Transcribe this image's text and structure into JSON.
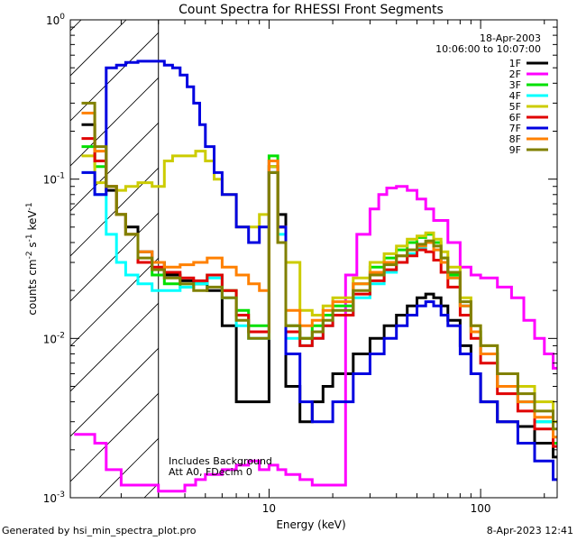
{
  "footer": {
    "generated_by": "Generated by hsi_min_spectra_plot.pro",
    "timestamp": "8-Apr-2023 12:41"
  },
  "colors": {
    "1F": "#000000",
    "2F": "#ff00ff",
    "3F": "#00e000",
    "4F": "#00ffff",
    "5F": "#cccc00",
    "6F": "#e00000",
    "7F": "#0000e0",
    "8F": "#ff8000",
    "9F": "#808000"
  },
  "chart_data": {
    "type": "line",
    "title": "Count Spectra for RHESSI Front Segments",
    "xlabel": "Energy (keV)",
    "ylabel_parts": [
      "counts cm",
      "-2",
      " s",
      "-1",
      " keV",
      "-1"
    ],
    "xscale": "log",
    "yscale": "log",
    "xlim": [
      1.15,
      230
    ],
    "ylim": [
      0.001,
      1
    ],
    "x_ticks": [
      10,
      100
    ],
    "x_tick_labels": [
      "10",
      "100"
    ],
    "y_ticks": [
      0.001,
      0.01,
      0.1,
      1
    ],
    "y_tick_labels_base": [
      "10",
      "10",
      "10",
      "10"
    ],
    "y_tick_labels_exp": [
      "-3",
      "-2",
      "-1",
      "0"
    ],
    "date": "18-Apr-2003",
    "time_range": "10:06:00 to 10:07:00",
    "annotations": [
      "Includes Background",
      "Att A0, FDecim 0"
    ],
    "hatched_region_xmax": 3.0,
    "legend_placement": "top-right",
    "series": [
      {
        "name": "1F",
        "x": [
          1.3,
          1.5,
          1.7,
          1.9,
          2.1,
          2.4,
          2.8,
          3.2,
          3.8,
          4.4,
          5.1,
          6,
          7,
          8,
          9,
          10,
          11,
          12,
          14,
          16,
          18,
          20,
          25,
          30,
          35,
          40,
          45,
          50,
          55,
          60,
          65,
          70,
          80,
          90,
          100,
          120,
          150,
          180,
          220
        ],
        "y": [
          0.22,
          0.13,
          0.085,
          0.06,
          0.05,
          0.035,
          0.03,
          0.025,
          0.023,
          0.022,
          0.02,
          0.012,
          0.004,
          0.004,
          0.004,
          0.12,
          0.06,
          0.005,
          0.003,
          0.004,
          0.005,
          0.006,
          0.008,
          0.01,
          0.012,
          0.014,
          0.016,
          0.018,
          0.019,
          0.018,
          0.016,
          0.013,
          0.009,
          0.006,
          0.004,
          0.003,
          0.0028,
          0.0022,
          0.0018
        ]
      },
      {
        "name": "2F",
        "x": [
          1.2,
          1.3,
          1.5,
          1.7,
          2.0,
          2.5,
          3.0,
          3.5,
          4.0,
          4.5,
          5.0,
          6.0,
          7.0,
          8.0,
          9.0,
          10,
          11,
          12,
          14,
          16,
          18,
          20,
          23,
          26,
          30,
          33,
          36,
          40,
          45,
          50,
          55,
          60,
          70,
          80,
          90,
          100,
          120,
          140,
          160,
          180,
          200,
          220
        ],
        "y": [
          0.0025,
          0.0025,
          0.0022,
          0.0015,
          0.0012,
          0.0012,
          0.0011,
          0.0011,
          0.0012,
          0.0013,
          0.0014,
          0.0015,
          0.0016,
          0.0017,
          0.0015,
          0.0016,
          0.0015,
          0.0014,
          0.0013,
          0.0012,
          0.0012,
          0.0012,
          0.025,
          0.045,
          0.065,
          0.08,
          0.088,
          0.09,
          0.085,
          0.075,
          0.065,
          0.055,
          0.04,
          0.028,
          0.025,
          0.024,
          0.021,
          0.018,
          0.013,
          0.01,
          0.008,
          0.0065
        ]
      },
      {
        "name": "3F",
        "x": [
          1.3,
          1.5,
          1.7,
          1.9,
          2.1,
          2.4,
          2.8,
          3.2,
          3.8,
          4.4,
          5.1,
          6,
          7,
          8,
          9,
          10,
          11,
          12,
          14,
          16,
          18,
          20,
          25,
          30,
          35,
          40,
          45,
          50,
          55,
          60,
          65,
          70,
          80,
          90,
          100,
          120,
          150,
          180,
          220
        ],
        "y": [
          0.16,
          0.12,
          0.09,
          0.06,
          0.045,
          0.03,
          0.025,
          0.022,
          0.021,
          0.022,
          0.025,
          0.02,
          0.015,
          0.012,
          0.012,
          0.14,
          0.05,
          0.012,
          0.01,
          0.012,
          0.014,
          0.016,
          0.022,
          0.028,
          0.032,
          0.036,
          0.04,
          0.043,
          0.045,
          0.04,
          0.032,
          0.025,
          0.016,
          0.011,
          0.008,
          0.005,
          0.004,
          0.003,
          0.0022
        ]
      },
      {
        "name": "4F",
        "x": [
          1.3,
          1.5,
          1.7,
          1.9,
          2.1,
          2.4,
          2.8,
          3.2,
          3.8,
          4.4,
          5.1,
          6,
          7,
          8,
          9,
          10,
          11,
          12,
          14,
          16,
          18,
          20,
          25,
          30,
          35,
          40,
          45,
          50,
          55,
          60,
          65,
          70,
          80,
          90,
          100,
          120,
          150,
          180,
          220
        ],
        "y": [
          0.11,
          0.08,
          0.045,
          0.03,
          0.025,
          0.022,
          0.02,
          0.02,
          0.021,
          0.022,
          0.024,
          0.018,
          0.012,
          0.01,
          0.01,
          0.11,
          0.045,
          0.01,
          0.009,
          0.01,
          0.012,
          0.014,
          0.018,
          0.022,
          0.026,
          0.03,
          0.034,
          0.037,
          0.04,
          0.036,
          0.03,
          0.024,
          0.016,
          0.011,
          0.008,
          0.005,
          0.004,
          0.003,
          0.0024
        ]
      },
      {
        "name": "5F",
        "x": [
          1.3,
          1.5,
          1.7,
          1.9,
          2.1,
          2.4,
          2.8,
          3.2,
          3.5,
          4.0,
          4.5,
          5.0,
          5.5,
          6,
          7,
          8,
          9,
          10,
          11,
          12,
          14,
          16,
          18,
          20,
          25,
          30,
          35,
          40,
          45,
          50,
          55,
          60,
          65,
          70,
          80,
          90,
          100,
          120,
          150,
          180,
          220
        ],
        "y": [
          0.14,
          0.095,
          0.09,
          0.085,
          0.09,
          0.095,
          0.09,
          0.13,
          0.14,
          0.14,
          0.15,
          0.13,
          0.1,
          0.08,
          0.05,
          0.05,
          0.06,
          0.12,
          0.05,
          0.03,
          0.015,
          0.014,
          0.016,
          0.018,
          0.024,
          0.03,
          0.034,
          0.038,
          0.042,
          0.044,
          0.046,
          0.042,
          0.035,
          0.028,
          0.018,
          0.012,
          0.009,
          0.006,
          0.005,
          0.004,
          0.003
        ]
      },
      {
        "name": "6F",
        "x": [
          1.3,
          1.5,
          1.7,
          1.9,
          2.1,
          2.4,
          2.8,
          3.2,
          3.8,
          4.4,
          5.1,
          6,
          7,
          8,
          9,
          10,
          11,
          12,
          14,
          16,
          18,
          20,
          25,
          30,
          35,
          40,
          45,
          50,
          55,
          60,
          65,
          70,
          80,
          90,
          100,
          120,
          150,
          180,
          220
        ],
        "y": [
          0.18,
          0.13,
          0.09,
          0.06,
          0.045,
          0.03,
          0.028,
          0.026,
          0.024,
          0.023,
          0.025,
          0.02,
          0.014,
          0.011,
          0.011,
          0.13,
          0.05,
          0.011,
          0.009,
          0.01,
          0.012,
          0.014,
          0.019,
          0.023,
          0.027,
          0.03,
          0.033,
          0.036,
          0.035,
          0.031,
          0.026,
          0.021,
          0.014,
          0.01,
          0.007,
          0.0045,
          0.0035,
          0.0027,
          0.0021
        ]
      },
      {
        "name": "7F",
        "x": [
          1.3,
          1.5,
          1.7,
          1.9,
          2.1,
          2.4,
          2.8,
          3.0,
          3.2,
          3.5,
          3.8,
          4.1,
          4.4,
          4.7,
          5.0,
          5.5,
          6,
          7,
          8,
          9,
          10,
          11,
          12,
          14,
          16,
          18,
          20,
          25,
          30,
          35,
          40,
          45,
          50,
          55,
          60,
          65,
          70,
          80,
          90,
          100,
          120,
          150,
          180,
          220
        ],
        "y": [
          0.11,
          0.08,
          0.5,
          0.52,
          0.54,
          0.55,
          0.55,
          0.55,
          0.52,
          0.5,
          0.45,
          0.38,
          0.3,
          0.22,
          0.16,
          0.11,
          0.08,
          0.05,
          0.04,
          0.05,
          0.11,
          0.05,
          0.008,
          0.004,
          0.003,
          0.003,
          0.004,
          0.006,
          0.008,
          0.01,
          0.012,
          0.014,
          0.016,
          0.017,
          0.016,
          0.014,
          0.012,
          0.008,
          0.006,
          0.004,
          0.003,
          0.0022,
          0.0017,
          0.0013
        ]
      },
      {
        "name": "8F",
        "x": [
          1.3,
          1.5,
          1.7,
          1.9,
          2.1,
          2.4,
          2.8,
          3.2,
          3.8,
          4.4,
          5.1,
          6,
          7,
          8,
          9,
          10,
          11,
          12,
          14,
          16,
          18,
          20,
          25,
          30,
          35,
          40,
          45,
          50,
          55,
          60,
          65,
          70,
          80,
          90,
          100,
          120,
          150,
          180,
          220
        ],
        "y": [
          0.26,
          0.15,
          0.09,
          0.06,
          0.045,
          0.035,
          0.03,
          0.028,
          0.029,
          0.03,
          0.032,
          0.028,
          0.025,
          0.022,
          0.02,
          0.13,
          0.04,
          0.015,
          0.012,
          0.013,
          0.015,
          0.017,
          0.022,
          0.026,
          0.03,
          0.033,
          0.036,
          0.038,
          0.04,
          0.036,
          0.03,
          0.024,
          0.016,
          0.011,
          0.008,
          0.005,
          0.004,
          0.0032,
          0.0024
        ]
      },
      {
        "name": "9F",
        "x": [
          1.3,
          1.5,
          1.7,
          1.9,
          2.1,
          2.4,
          2.8,
          3.2,
          3.8,
          4.4,
          5.1,
          6,
          7,
          8,
          9,
          10,
          11,
          12,
          14,
          16,
          18,
          20,
          25,
          30,
          35,
          40,
          45,
          50,
          55,
          60,
          65,
          70,
          80,
          90,
          100,
          120,
          150,
          180,
          220
        ],
        "y": [
          0.3,
          0.16,
          0.09,
          0.06,
          0.045,
          0.032,
          0.027,
          0.024,
          0.022,
          0.02,
          0.021,
          0.018,
          0.013,
          0.01,
          0.01,
          0.11,
          0.04,
          0.012,
          0.01,
          0.011,
          0.013,
          0.015,
          0.02,
          0.025,
          0.029,
          0.033,
          0.036,
          0.039,
          0.041,
          0.038,
          0.032,
          0.026,
          0.017,
          0.012,
          0.009,
          0.006,
          0.0045,
          0.0035,
          0.0027
        ]
      }
    ]
  }
}
